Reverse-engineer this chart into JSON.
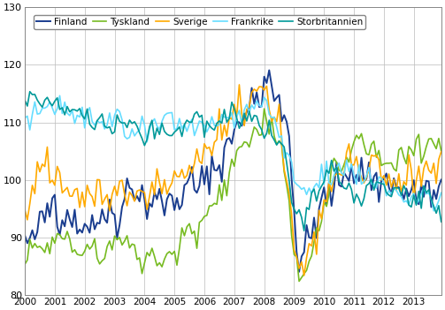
{
  "title": "",
  "xlabel": "",
  "ylabel": "",
  "ylim": [
    80,
    130
  ],
  "xlim": [
    2000.0,
    2013.92
  ],
  "yticks": [
    80,
    90,
    100,
    110,
    120,
    130
  ],
  "xtick_labels": [
    "2000",
    "2001",
    "2002",
    "2003",
    "2004",
    "2005",
    "2006",
    "2007",
    "2008",
    "2009",
    "2010",
    "2011",
    "2012",
    "2013"
  ],
  "legend_labels": [
    "Finland",
    "Tyskland",
    "Sverige",
    "Frankrike",
    "Storbritannien"
  ],
  "colors": {
    "Finland": "#1a3d8f",
    "Tyskland": "#77bb22",
    "Sverige": "#ffaa00",
    "Frankrike": "#66ddff",
    "Storbritannien": "#009999"
  },
  "linewidths": {
    "Finland": 1.4,
    "Tyskland": 1.2,
    "Sverige": 1.2,
    "Frankrike": 1.2,
    "Storbritannien": 1.2
  },
  "background_color": "#ffffff",
  "grid_color": "#bbbbbb",
  "n_months": 168,
  "start_year": 2000,
  "noise_seed": 42
}
